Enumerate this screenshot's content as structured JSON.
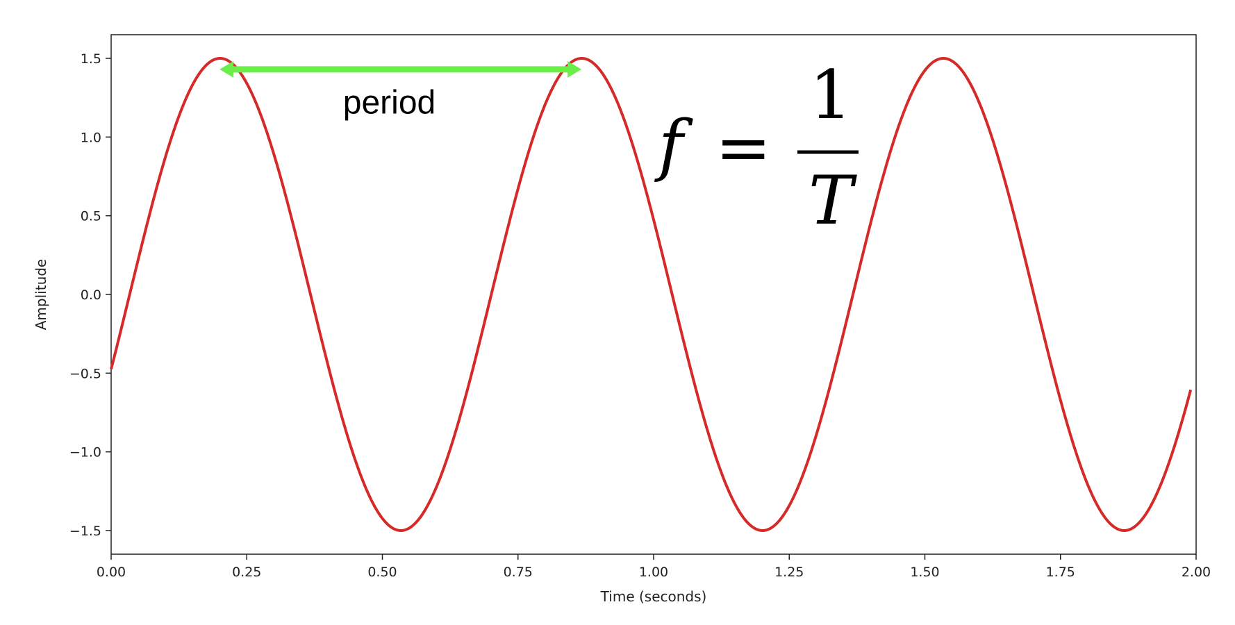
{
  "chart_data": {
    "type": "line",
    "xlabel": "Time (seconds)",
    "ylabel": "Amplitude",
    "xlim": [
      0,
      2
    ],
    "ylim": [
      -1.65,
      1.65
    ],
    "grid": false,
    "x_ticks": [
      0,
      0.25,
      0.5,
      0.75,
      1.0,
      1.25,
      1.5,
      1.75,
      2.0
    ],
    "x_tick_labels": [
      "0.00",
      "0.25",
      "0.50",
      "0.75",
      "1.00",
      "1.25",
      "1.50",
      "1.75",
      "2.00"
    ],
    "y_ticks": [
      -1.5,
      -1.0,
      -0.5,
      0.0,
      0.5,
      1.0,
      1.5
    ],
    "y_tick_labels": [
      "−1.5",
      "−1.0",
      "−0.5",
      "0.0",
      "0.5",
      "1.0",
      "1.5"
    ],
    "series": [
      {
        "color": "#d62a28",
        "function": "sine",
        "amplitude": 1.5,
        "frequency_hz": 1.5,
        "phase_rad": -0.3218,
        "x_range": [
          0,
          1.99
        ]
      }
    ],
    "annotations": {
      "period_arrow": {
        "x_start": 0.2,
        "x_end": 0.867,
        "y": 1.43,
        "color": "#6aee4a"
      },
      "period_label": {
        "text": "period",
        "x": 0.5,
        "y": 1.22
      },
      "formula": {
        "lhs": "f",
        "equals": "=",
        "numerator": "1",
        "denominator": "T"
      }
    }
  }
}
